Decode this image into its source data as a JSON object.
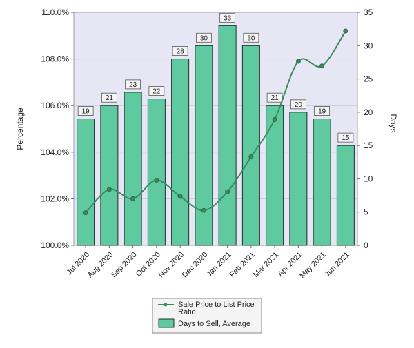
{
  "chart_data": {
    "type": "bar",
    "categories": [
      "Jul 2020",
      "Aug 2020",
      "Sep 2020",
      "Oct 2020",
      "Nov 2020",
      "Dec 2020",
      "Jan 2021",
      "Feb 2021",
      "Mar 2021",
      "Apr 2021",
      "May 2021",
      "Jun 2021"
    ],
    "series": [
      {
        "name": "Days to Sell, Average",
        "kind": "bar",
        "axis": "right",
        "color": "#5fc9a0",
        "values": [
          19,
          21,
          23,
          22,
          28,
          30,
          33,
          30,
          21,
          20,
          19,
          15
        ]
      },
      {
        "name": "Sale Price to List Price Ratio",
        "kind": "line",
        "axis": "left",
        "color": "#3a8a5c",
        "values": [
          101.4,
          102.4,
          102.0,
          102.8,
          102.1,
          101.5,
          102.3,
          103.8,
          105.4,
          107.9,
          107.7,
          109.2
        ]
      }
    ],
    "y_left": {
      "label": "Percentage",
      "range": [
        100,
        110
      ],
      "ticks": [
        "100.0%",
        "102.0%",
        "104.0%",
        "106.0%",
        "108.0%",
        "110.0%"
      ]
    },
    "y_right": {
      "label": "Days",
      "range": [
        0,
        35
      ],
      "ticks": [
        "0",
        "5",
        "10",
        "15",
        "20",
        "25",
        "30",
        "35"
      ]
    },
    "legend": {
      "placement": "bottom",
      "items": [
        "Sale Price to List Price Ratio",
        "Days to Sell, Average"
      ]
    },
    "grid": true,
    "plot_background": "#e6e6f5"
  }
}
